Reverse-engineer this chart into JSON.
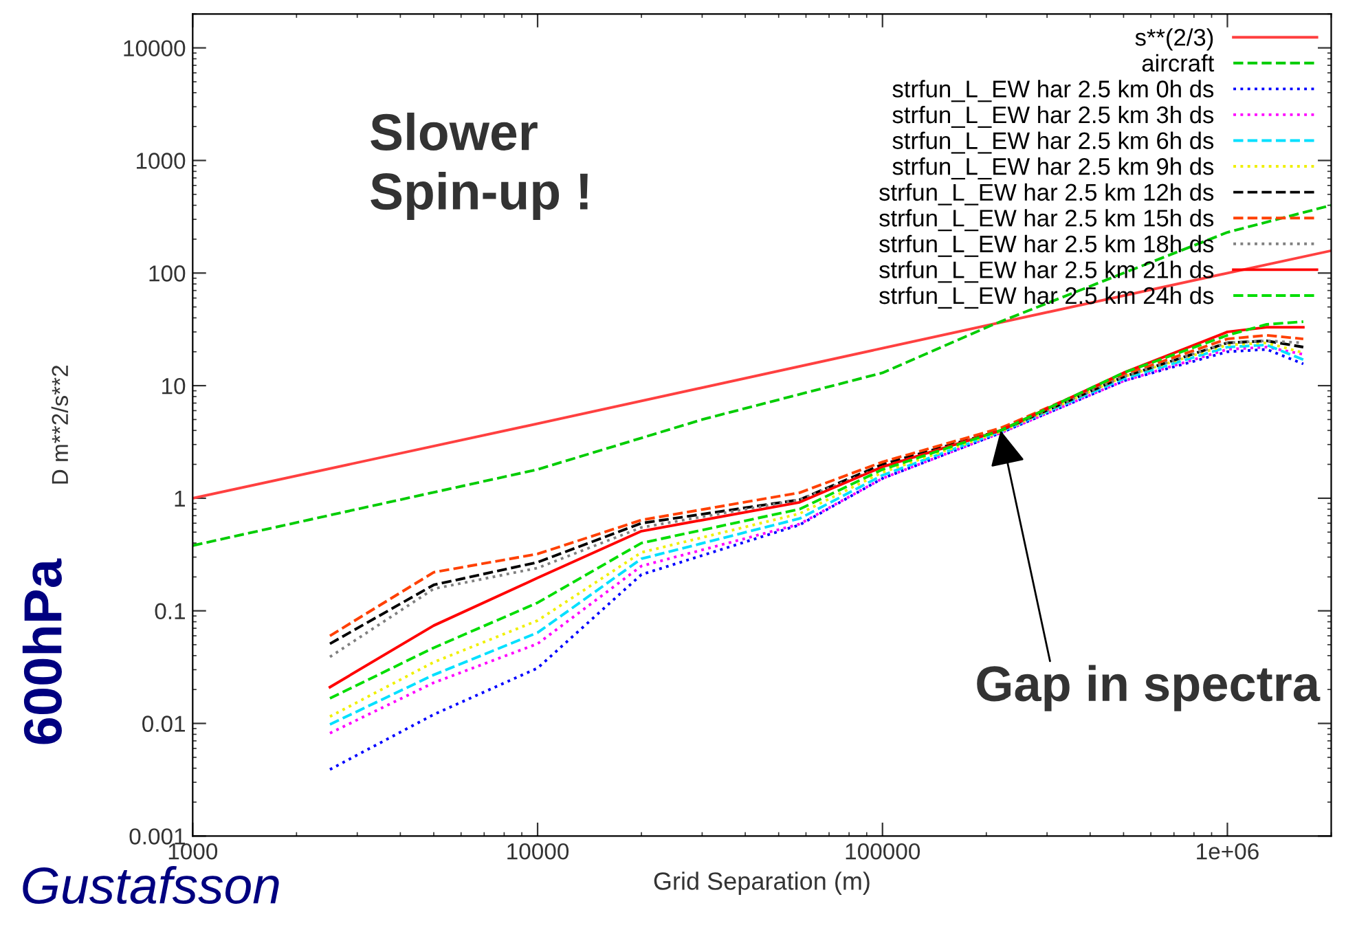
{
  "chart_data": {
    "type": "line",
    "xlabel": "Grid Separation (m)",
    "ylabel": "D m**2/s**2",
    "log": "xy",
    "xlim": [
      1000,
      2000000
    ],
    "ylim": [
      0.001,
      20000
    ],
    "xticks": [
      1000,
      10000,
      100000,
      {
        "value": 1000000,
        "label": "1e+06"
      }
    ],
    "yticks": [
      0.001,
      0.01,
      0.1,
      1,
      10,
      100,
      1000,
      10000
    ],
    "grid": false,
    "legend": "top right",
    "annotations": [
      "Slower\nSpin-up !",
      {
        "text": "Gap in spectra",
        "x": 220000,
        "y": 4
      },
      "600hPa",
      "Gustafsson"
    ],
    "series": [
      {
        "name": "s**(2/3)",
        "color": "#ff4040",
        "line_style": "solid",
        "x": [
          1000,
          10000,
          100000,
          1000000,
          2000000
        ],
        "values": [
          1,
          4.6,
          21.5,
          100,
          158
        ]
      },
      {
        "name": "aircraft",
        "color": "#00cc00",
        "line_style": "dashed",
        "x": [
          1000,
          3000,
          10000,
          30000,
          100000,
          210000,
          500000,
          1000000,
          2000000
        ],
        "values": [
          0.38,
          0.8,
          1.8,
          5,
          13,
          35,
          100,
          230,
          400
        ]
      },
      {
        "name": "strfun_L_EW har 2.5 km 0h ds",
        "color": "#0000ff",
        "line_style": "dotted",
        "x": [
          2500,
          5000,
          10000,
          20000,
          57500,
          100000,
          220000,
          500000,
          1000000,
          1300000,
          1660000
        ],
        "values": [
          0.0039,
          0.012,
          0.031,
          0.21,
          0.58,
          1.5,
          3.8,
          11,
          20,
          21,
          15.6
        ]
      },
      {
        "name": "strfun_L_EW har 2.5 km 3h ds",
        "color": "#ff00ff",
        "line_style": "dotted",
        "x": [
          2500,
          5000,
          10000,
          20000,
          57500,
          100000,
          220000,
          500000,
          1000000,
          1300000,
          1660000
        ],
        "values": [
          0.0082,
          0.023,
          0.051,
          0.25,
          0.59,
          1.5,
          3.8,
          11,
          21,
          22,
          19
        ]
      },
      {
        "name": "strfun_L_EW har 2.5 km 6h ds",
        "color": "#00e0ff",
        "line_style": "dashed",
        "x": [
          2500,
          5000,
          10000,
          20000,
          57500,
          100000,
          220000,
          500000,
          1000000,
          1300000,
          1660000
        ],
        "values": [
          0.0098,
          0.027,
          0.064,
          0.29,
          0.66,
          1.6,
          3.9,
          11.5,
          22,
          23,
          17
        ]
      },
      {
        "name": "strfun_L_EW har 2.5 km 9h ds",
        "color": "#f0f000",
        "line_style": "dotted",
        "x": [
          2500,
          5000,
          10000,
          20000,
          57500,
          100000,
          220000,
          500000,
          1000000,
          1300000,
          1660000
        ],
        "values": [
          0.0115,
          0.035,
          0.082,
          0.33,
          0.73,
          1.7,
          3.9,
          12,
          23,
          24,
          19.6
        ]
      },
      {
        "name": "strfun_L_EW har 2.5 km 12h ds",
        "color": "#000000",
        "line_style": "dashed",
        "x": [
          2500,
          5000,
          10000,
          20000,
          57500,
          100000,
          220000,
          500000,
          1000000,
          1300000,
          1660000
        ],
        "values": [
          0.051,
          0.17,
          0.27,
          0.6,
          0.97,
          2,
          4,
          12,
          24,
          25,
          22
        ]
      },
      {
        "name": "strfun_L_EW har 2.5 km 15h ds",
        "color": "#ff4000",
        "line_style": "dashed",
        "x": [
          2500,
          5000,
          10000,
          20000,
          57500,
          100000,
          220000,
          500000,
          1000000,
          1300000,
          1660000
        ],
        "values": [
          0.06,
          0.22,
          0.32,
          0.64,
          1.12,
          2.1,
          4.2,
          12.5,
          26,
          28,
          26
        ]
      },
      {
        "name": "strfun_L_EW har 2.5 km 18h ds",
        "color": "#808080",
        "line_style": "dotted",
        "x": [
          2500,
          5000,
          10000,
          20000,
          57500,
          100000,
          220000,
          500000,
          1000000,
          1300000,
          1660000
        ],
        "values": [
          0.039,
          0.157,
          0.24,
          0.55,
          0.97,
          1.9,
          4,
          12,
          24,
          25,
          24
        ]
      },
      {
        "name": "strfun_L_EW har 2.5 km 21h ds",
        "color": "#ff0000",
        "line_style": "solid",
        "x": [
          2500,
          5000,
          10000,
          20000,
          57500,
          100000,
          220000,
          500000,
          1000000,
          1300000,
          1660000
        ],
        "values": [
          0.021,
          0.074,
          0.196,
          0.51,
          0.92,
          1.9,
          4,
          13,
          30,
          33,
          33
        ]
      },
      {
        "name": "strfun_L_EW har 2.5 km 24h ds",
        "color": "#00dd00",
        "line_style": "dashed",
        "x": [
          2500,
          5000,
          10000,
          20000,
          57500,
          100000,
          220000,
          500000,
          1000000,
          1300000,
          1660000
        ],
        "values": [
          0.0167,
          0.047,
          0.118,
          0.4,
          0.8,
          1.8,
          4,
          13,
          28,
          35,
          37
        ]
      }
    ]
  }
}
